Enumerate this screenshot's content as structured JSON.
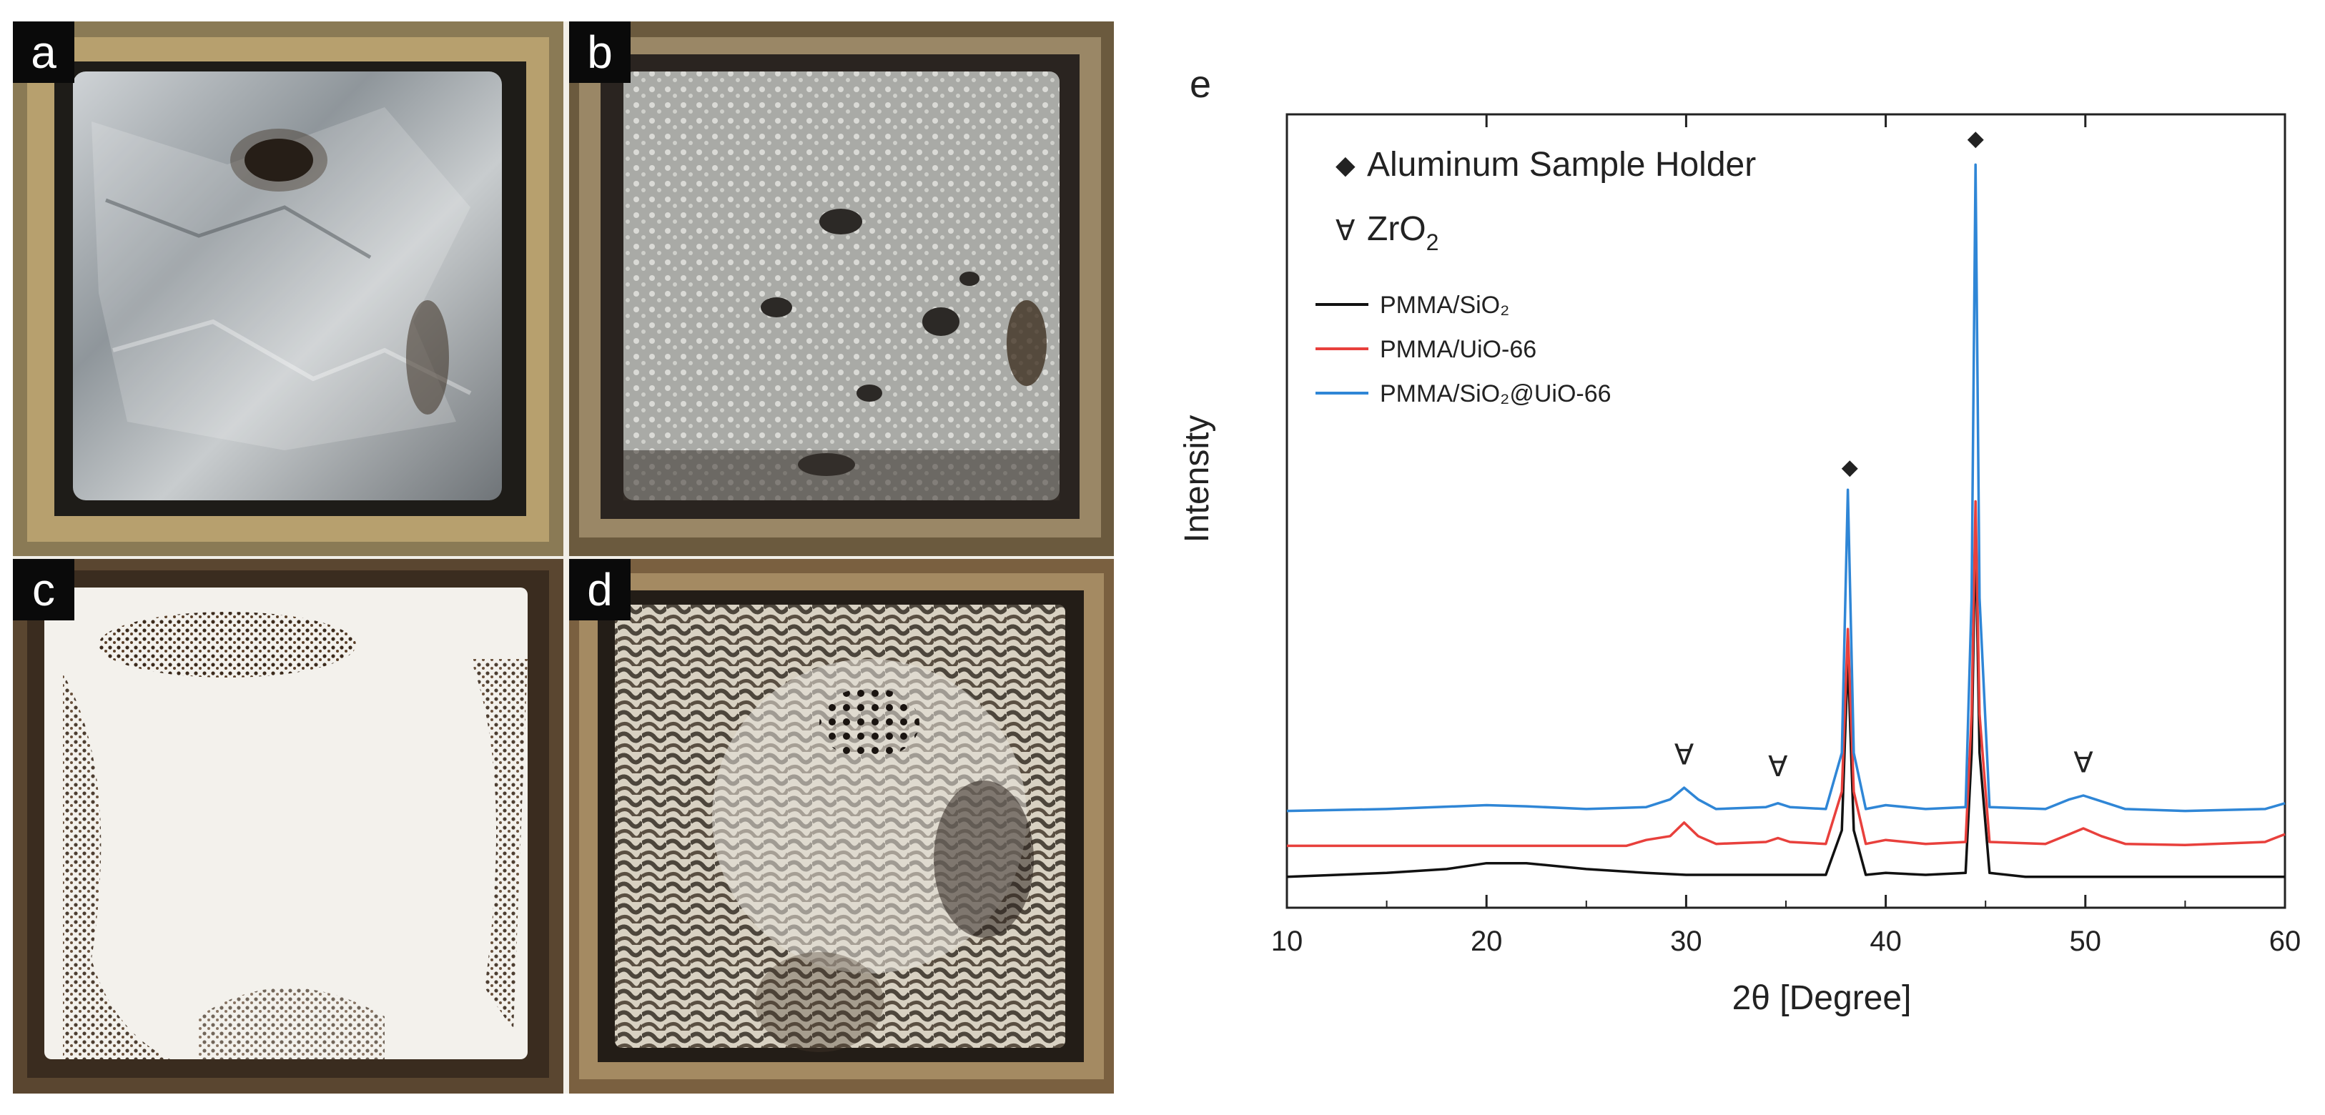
{
  "panels": [
    {
      "letter": "a"
    },
    {
      "letter": "b"
    },
    {
      "letter": "c"
    },
    {
      "letter": "d"
    }
  ],
  "chart_data": {
    "type": "line",
    "panel_label": "e",
    "title": "",
    "xlabel": "2θ [Degree]",
    "ylabel": "Intensity",
    "xlim": [
      10,
      60
    ],
    "x_ticks": [
      10,
      20,
      30,
      40,
      50,
      60
    ],
    "y_ticks_labeled": false,
    "grid": false,
    "legend_position": "upper-left",
    "marker_legend": [
      {
        "symbol": "◆",
        "label": "Aluminum Sample Holder"
      },
      {
        "symbol": "∀",
        "label": "ZrO",
        "subscript": "2"
      }
    ],
    "series": [
      {
        "name": "PMMA/SiO₂",
        "color": "#111111",
        "baseline": 0.08,
        "x": [
          10,
          15,
          18,
          20,
          22,
          25,
          28,
          30,
          33,
          35,
          37,
          37.8,
          38.1,
          38.4,
          39,
          40,
          42,
          44,
          44.3,
          44.5,
          44.7,
          45.2,
          47,
          50,
          55,
          60
        ],
        "y": [
          0.08,
          0.09,
          0.1,
          0.115,
          0.115,
          0.1,
          0.09,
          0.085,
          0.085,
          0.085,
          0.085,
          0.2,
          0.65,
          0.2,
          0.085,
          0.09,
          0.085,
          0.09,
          0.4,
          0.98,
          0.4,
          0.09,
          0.08,
          0.08,
          0.08,
          0.08
        ]
      },
      {
        "name": "PMMA/UiO-66",
        "color": "#e8403c",
        "baseline": 0.16,
        "x": [
          10,
          20,
          27,
          28,
          29.2,
          29.9,
          30.6,
          31.5,
          34,
          34.6,
          35.2,
          37,
          37.8,
          38.1,
          38.4,
          39,
          40,
          42,
          44,
          44.3,
          44.5,
          44.7,
          45.2,
          48,
          49.2,
          49.9,
          50.8,
          52,
          55,
          59,
          60
        ],
        "y": [
          0.16,
          0.16,
          0.16,
          0.175,
          0.185,
          0.22,
          0.185,
          0.165,
          0.17,
          0.18,
          0.17,
          0.165,
          0.3,
          0.72,
          0.3,
          0.165,
          0.175,
          0.165,
          0.17,
          0.5,
          1.05,
          0.5,
          0.17,
          0.165,
          0.19,
          0.205,
          0.185,
          0.165,
          0.162,
          0.17,
          0.19
        ]
      },
      {
        "name": "PMMA/SiO₂@UiO-66",
        "color": "#2f86d6",
        "baseline": 0.25,
        "x": [
          10,
          15,
          20,
          22,
          25,
          28,
          29.2,
          29.9,
          30.6,
          31.5,
          34,
          34.6,
          35.2,
          37,
          37.8,
          38.1,
          38.4,
          39,
          40,
          42,
          44,
          44.3,
          44.5,
          44.7,
          45.2,
          48,
          49.2,
          49.9,
          50.8,
          52,
          55,
          59,
          60
        ],
        "y": [
          0.25,
          0.255,
          0.265,
          0.262,
          0.255,
          0.26,
          0.28,
          0.31,
          0.28,
          0.255,
          0.26,
          0.27,
          0.26,
          0.255,
          0.4,
          1.08,
          0.4,
          0.255,
          0.265,
          0.255,
          0.26,
          0.8,
          1.92,
          0.8,
          0.26,
          0.255,
          0.28,
          0.29,
          0.275,
          0.255,
          0.25,
          0.255,
          0.27
        ]
      }
    ],
    "annotations": [
      {
        "symbol": "◆",
        "x": 38.2,
        "y": 1.12
      },
      {
        "symbol": "◆",
        "x": 44.5,
        "y": 1.97
      },
      {
        "symbol": "∀",
        "x": 29.9,
        "y": 0.37
      },
      {
        "symbol": "∀",
        "x": 34.6,
        "y": 0.34
      },
      {
        "symbol": "∀",
        "x": 49.9,
        "y": 0.35
      }
    ]
  }
}
